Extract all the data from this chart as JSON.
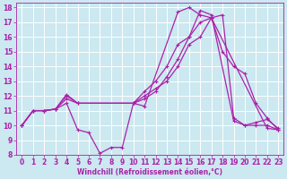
{
  "xlabel": "Windchill (Refroidissement éolien,°C)",
  "line_color": "#aa22aa",
  "bg_color": "#cce8f0",
  "grid_color": "#ffffff",
  "lines": [
    {
      "x": [
        0,
        1,
        2,
        3,
        4,
        5,
        6,
        7,
        8,
        9,
        10,
        11,
        14,
        15,
        16,
        17,
        22,
        23
      ],
      "y": [
        10,
        11,
        11,
        11.1,
        11.5,
        9.7,
        9.5,
        8.1,
        8.5,
        8.5,
        11.5,
        11.3,
        17.7,
        18.0,
        17.5,
        17.3,
        9.8,
        9.7
      ]
    },
    {
      "x": [
        0,
        1,
        2,
        3,
        4,
        5,
        10,
        11,
        12,
        13,
        14,
        15,
        16,
        17,
        18,
        19,
        20,
        21,
        22,
        23
      ],
      "y": [
        10,
        11,
        11,
        11.1,
        11.8,
        11.5,
        11.5,
        12.0,
        12.5,
        13.0,
        14.0,
        15.5,
        16.0,
        17.3,
        15.0,
        14.0,
        13.5,
        11.5,
        10.5,
        9.7
      ]
    },
    {
      "x": [
        0,
        1,
        2,
        3,
        4,
        5,
        10,
        11,
        12,
        13,
        14,
        15,
        16,
        17,
        18,
        19,
        20,
        21,
        22,
        23
      ],
      "y": [
        10,
        11,
        11,
        11.1,
        12.0,
        11.5,
        11.5,
        11.8,
        12.3,
        13.3,
        14.5,
        16.0,
        17.0,
        17.3,
        17.5,
        10.5,
        10.0,
        10.0,
        10.0,
        9.7
      ]
    },
    {
      "x": [
        0,
        1,
        2,
        3,
        4,
        5,
        10,
        11,
        12,
        13,
        14,
        15,
        16,
        17,
        19,
        20,
        21,
        22,
        23
      ],
      "y": [
        10,
        11,
        11,
        11.1,
        12.1,
        11.5,
        11.5,
        12.3,
        13.0,
        14.0,
        15.5,
        16.0,
        17.8,
        17.5,
        10.3,
        10.0,
        10.2,
        10.4,
        9.8
      ]
    }
  ],
  "xlim": [
    -0.5,
    23.5
  ],
  "ylim": [
    8,
    18.3
  ],
  "yticks": [
    8,
    9,
    10,
    11,
    12,
    13,
    14,
    15,
    16,
    17,
    18
  ],
  "xticks": [
    0,
    1,
    2,
    3,
    4,
    5,
    6,
    7,
    8,
    9,
    10,
    11,
    12,
    13,
    14,
    15,
    16,
    17,
    18,
    19,
    20,
    21,
    22,
    23
  ],
  "tick_fontsize": 5.5,
  "xlabel_fontsize": 5.5,
  "linewidth": 0.9,
  "markersize": 2.5
}
